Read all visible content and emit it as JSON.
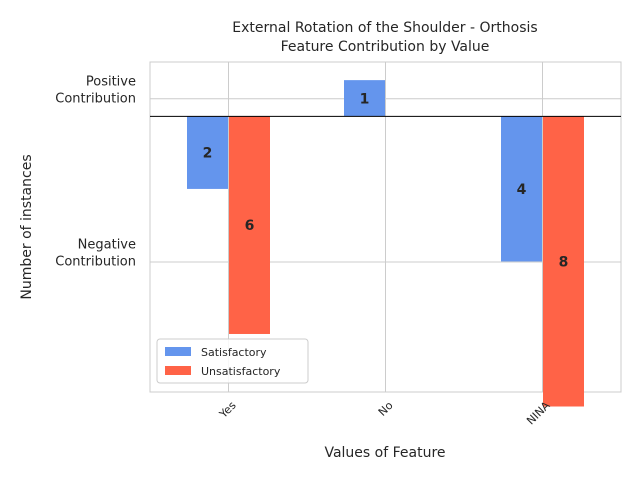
{
  "chart_data": {
    "type": "bar",
    "title": "External Rotation of the Shoulder - Orthosis",
    "subtitle": "Feature Contribution by Value",
    "xlabel": "Values of Feature",
    "ylabel": "Number of instances",
    "categories": [
      "Yes",
      "No",
      "NINA"
    ],
    "ytick_labels": [
      {
        "lines": [
          "Positive",
          "Contribution"
        ],
        "value": 0.5
      },
      {
        "lines": [
          "Negative",
          "Contribution"
        ],
        "value": -4
      }
    ],
    "ylim": [
      -7.6,
      1.5
    ],
    "series": [
      {
        "name": "Satisfactory",
        "color": "#6495ED",
        "values": [
          -2,
          1,
          -4
        ]
      },
      {
        "name": "Unsatisfactory",
        "color": "#FF6347",
        "values": [
          -6,
          null,
          -8
        ]
      }
    ],
    "data_labels": [
      {
        "category": "Yes",
        "series": "Satisfactory",
        "text": "2"
      },
      {
        "category": "Yes",
        "series": "Unsatisfactory",
        "text": "6"
      },
      {
        "category": "No",
        "series": "Satisfactory",
        "text": "1"
      },
      {
        "category": "NINA",
        "series": "Satisfactory",
        "text": "4"
      },
      {
        "category": "NINA",
        "series": "Unsatisfactory",
        "text": "8"
      }
    ],
    "legend_position": "lower-left",
    "grid": true,
    "colors": {
      "grid": "#cccccc",
      "zero_line": "#000000"
    }
  }
}
